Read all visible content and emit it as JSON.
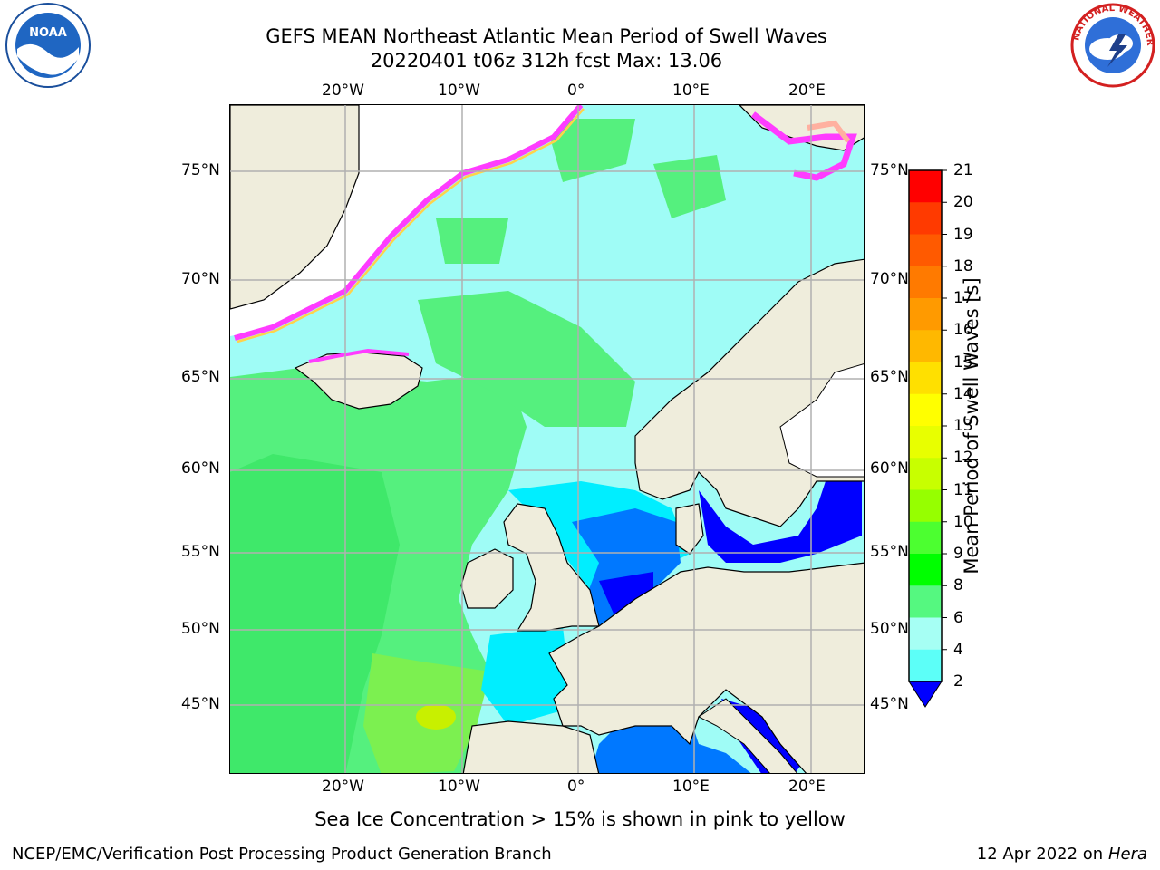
{
  "title": {
    "line1": "GEFS MEAN Northeast Atlantic Mean Period of Swell Waves",
    "line2": "20220401 t06z 312h fcst   Max: 13.06"
  },
  "lon_labels": [
    "20°W",
    "10°W",
    "0°",
    "10°E",
    "20°E"
  ],
  "lat_labels": [
    "75°N",
    "70°N",
    "65°N",
    "60°N",
    "55°N",
    "50°N",
    "45°N"
  ],
  "colorbar": {
    "label": "Mean Period of Swell Waves [s]",
    "ticks": [
      "21",
      "20",
      "19",
      "18",
      "17",
      "16",
      "15",
      "14",
      "13",
      "12",
      "11",
      "10",
      "9",
      "8",
      "6",
      "4",
      "2"
    ],
    "colors": [
      "#ff0000",
      "#ff3a00",
      "#ff5a00",
      "#ff7a00",
      "#ff9a00",
      "#ffb800",
      "#ffe000",
      "#ffff00",
      "#e8ff00",
      "#c8ff00",
      "#96ff00",
      "#4cff30",
      "#00ff00",
      "#55f880",
      "#a6fff4",
      "#5cfff8",
      "#00f0ff",
      "#007dff",
      "#0000ff"
    ],
    "color_semantics": {
      "min_extend": "#0000ff",
      "max": "#ff0000"
    }
  },
  "note": "Sea Ice Concentration > 15% is shown in pink to yellow",
  "footer": {
    "left": "NCEP/EMC/Verification Post Processing Product Generation Branch",
    "right_date": "12 Apr 2022 on ",
    "right_host": "Hera"
  },
  "logos": {
    "left": "NOAA",
    "right": "NATIONAL WEATHER SERVICE"
  },
  "colors": {
    "land": "#efeddc",
    "ocean_cyan": "#9ffcf6",
    "ocean_green": "#55f07e",
    "ocean_blue": "#0060ff",
    "grid": "#b0b0b0",
    "ice": "#ff3cff"
  }
}
